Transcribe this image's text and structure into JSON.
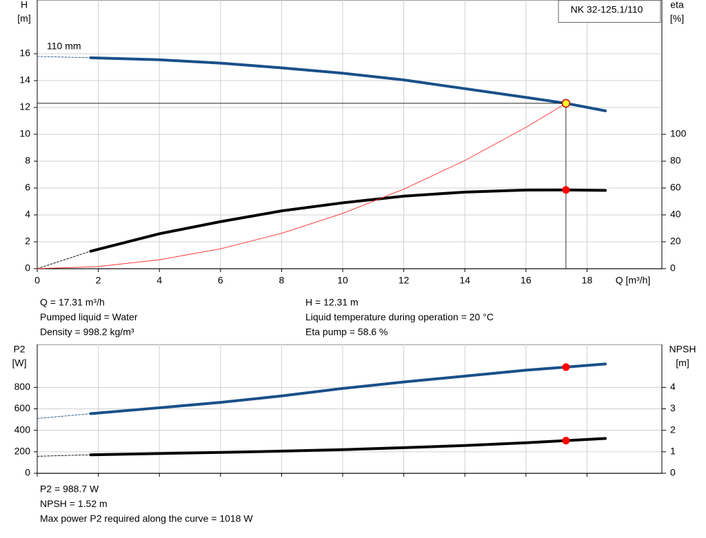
{
  "chart_data": [
    {
      "type": "line",
      "ylabel": "H",
      "yunit": "[m]",
      "y2label": "eta",
      "y2unit": "[%]",
      "xlabel": "Q [m³/h]",
      "label": "NK 32-125.1/110",
      "annotation": "110 mm",
      "xlim": [
        0,
        20.45
      ],
      "xticks": [
        0,
        2,
        4,
        6,
        8,
        10,
        12,
        14,
        16,
        18
      ],
      "show_xtick_labels": true,
      "ylim": [
        0,
        20
      ],
      "yticks": [
        0,
        2,
        4,
        6,
        8,
        10,
        12,
        14,
        16
      ],
      "y2lim": [
        0,
        200
      ],
      "y2ticks": [
        0,
        20,
        40,
        60,
        80,
        100
      ],
      "grid": true,
      "series": [
        {
          "color": "#1a4f8a",
          "dash": true,
          "x": [
            0,
            1.75
          ],
          "values": [
            15.8,
            15.7
          ]
        },
        {
          "color": "#1a4f8a",
          "dash": false,
          "x": [
            1.75,
            4,
            6,
            8,
            10,
            12,
            14,
            16,
            17.31,
            18.6
          ],
          "values": [
            15.7,
            15.55,
            15.3,
            14.95,
            14.55,
            14.05,
            13.4,
            12.75,
            12.31,
            11.75
          ]
        },
        {
          "color": "#000000",
          "dash": true,
          "axis": "y2",
          "x": [
            0,
            1.75
          ],
          "values": [
            0,
            13
          ]
        },
        {
          "color": "#000000",
          "dash": false,
          "axis": "y2",
          "x": [
            1.75,
            4,
            6,
            8,
            10,
            12,
            14,
            16,
            17.31,
            18.6
          ],
          "values": [
            13,
            26,
            35,
            43,
            49,
            54,
            57,
            58.5,
            58.6,
            58.3
          ]
        },
        {
          "color": "#ff2a2a",
          "thin": true,
          "x": [
            0,
            2,
            4,
            6,
            8,
            10,
            12,
            14,
            16,
            17.31
          ],
          "values": [
            0,
            0.16,
            0.66,
            1.48,
            2.63,
            4.11,
            5.92,
            8.05,
            10.52,
            12.31
          ]
        }
      ],
      "markers": [
        {
          "x": 17.31,
          "y": 12.31,
          "color": "#ffff33",
          "crosshair": true
        },
        {
          "x": 17.31,
          "y": 58.6,
          "color": "#ff0000",
          "axis": "y2"
        }
      ],
      "notes_left": [
        "Q = 17.31 m³/h",
        "Pumped liquid = Water",
        "Density = 998.2 kg/m³"
      ],
      "notes_right": [
        "H = 12.31 m",
        "Liquid temperature during operation = 20 °C",
        "Eta pump = 58.6 %"
      ]
    },
    {
      "type": "line",
      "ylabel": "P2",
      "yunit": "[W]",
      "y2label": "NPSH",
      "y2unit": "[m]",
      "xlim": [
        0,
        20.45
      ],
      "xticks": [
        0,
        2,
        4,
        6,
        8,
        10,
        12,
        14,
        16,
        18
      ],
      "show_xtick_labels": false,
      "ylim": [
        0,
        1200
      ],
      "yticks": [
        0,
        200,
        400,
        600,
        800
      ],
      "y2lim": [
        0,
        6
      ],
      "y2ticks": [
        0,
        1,
        2,
        3,
        4
      ],
      "grid": true,
      "series": [
        {
          "color": "#1a4f8a",
          "dash": true,
          "x": [
            0,
            1.75
          ],
          "values": [
            510,
            555
          ]
        },
        {
          "color": "#1a4f8a",
          "dash": false,
          "x": [
            1.75,
            4,
            6,
            8,
            10,
            12,
            14,
            16,
            17.31,
            18.6
          ],
          "values": [
            555,
            610,
            660,
            720,
            790,
            850,
            905,
            960,
            988.7,
            1018
          ]
        },
        {
          "color": "#000000",
          "dash": true,
          "axis": "y2",
          "x": [
            0,
            1.75
          ],
          "values": [
            0.79,
            0.86
          ]
        },
        {
          "color": "#000000",
          "dash": false,
          "axis": "y2",
          "x": [
            1.75,
            4,
            6,
            8,
            10,
            12,
            14,
            16,
            17.31,
            18.6
          ],
          "values": [
            0.86,
            0.92,
            0.97,
            1.03,
            1.1,
            1.19,
            1.29,
            1.42,
            1.52,
            1.62
          ]
        }
      ],
      "markers": [
        {
          "x": 17.31,
          "y": 988.7,
          "color": "#ff0000"
        },
        {
          "x": 17.31,
          "y": 1.52,
          "color": "#ff0000",
          "axis": "y2"
        }
      ],
      "notes_left": [
        "P2 = 988.7 W",
        "NPSH = 1.52 m",
        "Max power P2 required along the curve = 1018 W"
      ]
    }
  ]
}
